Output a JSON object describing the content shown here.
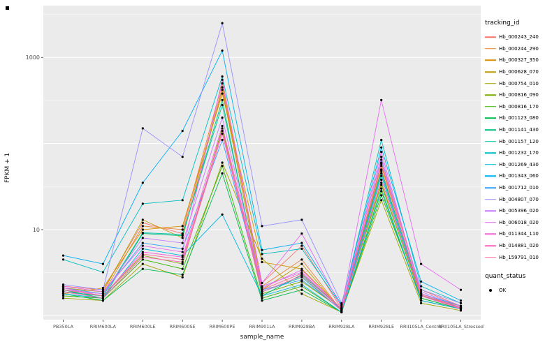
{
  "chart_data": {
    "type": "line",
    "title": "",
    "xlabel": "sample_name",
    "ylabel": "FPKM + 1",
    "y_scale": "log10",
    "y_ticks": [
      10,
      1000
    ],
    "ylim": [
      0.9,
      4000
    ],
    "panel_bg": "#EBEBEB",
    "grid_color": "#FFFFFF",
    "point_color": "#000000",
    "legend_title": "tracking_id",
    "legend2_title": "quant_status",
    "legend2_items": [
      {
        "label": "OK"
      }
    ],
    "categories": [
      "PB350LA",
      "RRIM600LA",
      "RRIM600LE",
      "RRIM600SE",
      "RRIM600PE",
      "RRIM901LA",
      "RRIM928BA",
      "RRIM928LA",
      "RRIM928LE",
      "RRII105LA_Control",
      "RRII105LA_Stressed"
    ],
    "series": [
      {
        "name": "Hb_000243_240",
        "color": "#F8766D",
        "values": [
          2.2,
          2.0,
          12,
          9,
          450,
          2.4,
          6.5,
          1.2,
          60,
          2.0,
          1.3
        ]
      },
      {
        "name": "Hb_000244_290",
        "color": "#EA8331",
        "values": [
          2.0,
          1.8,
          11,
          10,
          500,
          2.2,
          4.5,
          1.15,
          55,
          1.8,
          1.25
        ]
      },
      {
        "name": "Hb_000327_350",
        "color": "#D89000",
        "values": [
          1.8,
          2.1,
          10,
          11,
          380,
          4.2,
          3.5,
          1.2,
          50,
          1.7,
          1.3
        ]
      },
      {
        "name": "Hb_000628_070",
        "color": "#C09B00",
        "values": [
          2.1,
          1.9,
          13,
          8,
          420,
          2.0,
          4.0,
          1.15,
          35,
          1.6,
          1.2
        ]
      },
      {
        "name": "Hb_000754_010",
        "color": "#A3A500",
        "values": [
          1.6,
          1.5,
          4.0,
          2.8,
          60,
          4.6,
          1.8,
          1.1,
          22,
          1.4,
          1.15
        ]
      },
      {
        "name": "Hb_000816_090",
        "color": "#7CAE00",
        "values": [
          1.9,
          1.7,
          5.0,
          4.0,
          150,
          1.8,
          2.5,
          1.2,
          33,
          1.7,
          1.25
        ]
      },
      {
        "name": "Hb_000816_170",
        "color": "#39B600",
        "values": [
          1.7,
          1.6,
          4.5,
          3.5,
          55,
          1.6,
          2.2,
          1.1,
          28,
          1.5,
          1.2
        ]
      },
      {
        "name": "Hb_001123_080",
        "color": "#00BB4E",
        "values": [
          1.8,
          1.5,
          3.5,
          3.0,
          45,
          1.5,
          2.0,
          1.1,
          25,
          1.6,
          1.2
        ]
      },
      {
        "name": "Hb_001141_430",
        "color": "#00BF7D",
        "values": [
          2.0,
          1.6,
          9.0,
          8.5,
          320,
          1.7,
          3.0,
          1.2,
          48,
          1.8,
          1.3
        ]
      },
      {
        "name": "Hb_001157_120",
        "color": "#00C1A3",
        "values": [
          1.9,
          1.7,
          9.2,
          8.8,
          280,
          1.9,
          2.8,
          1.15,
          42,
          1.7,
          1.25
        ]
      },
      {
        "name": "Hb_001232_170",
        "color": "#00BFC4",
        "values": [
          4.5,
          3.2,
          20,
          22,
          600,
          5.2,
          6.0,
          1.3,
          110,
          2.2,
          1.4
        ]
      },
      {
        "name": "Hb_001269_430",
        "color": "#00BAE0",
        "values": [
          1.8,
          1.6,
          6.0,
          5.0,
          15,
          1.7,
          2.3,
          1.1,
          30,
          1.5,
          1.2
        ]
      },
      {
        "name": "Hb_001343_060",
        "color": "#00B0F6",
        "values": [
          5.0,
          4.0,
          35,
          140,
          1200,
          5.8,
          7.0,
          1.35,
          90,
          2.5,
          1.5
        ]
      },
      {
        "name": "Hb_001712_010",
        "color": "#35A2FF",
        "values": [
          2.1,
          1.8,
          7.0,
          6.0,
          110,
          2.0,
          2.6,
          1.2,
          45,
          1.8,
          1.3
        ]
      },
      {
        "name": "Hb_004807_070",
        "color": "#9590FF",
        "values": [
          2.3,
          2.0,
          150,
          70,
          2500,
          11,
          13,
          1.4,
          65,
          2.0,
          1.4
        ]
      },
      {
        "name": "Hb_005396_020",
        "color": "#C77CFF",
        "values": [
          2.0,
          1.8,
          8.0,
          7.0,
          200,
          2.2,
          3.2,
          1.2,
          70,
          1.9,
          1.3
        ]
      },
      {
        "name": "Hb_006018_020",
        "color": "#E76BF3",
        "values": [
          2.2,
          1.9,
          6.5,
          5.5,
          550,
          2.4,
          9.0,
          1.25,
          320,
          4.0,
          2.0
        ]
      },
      {
        "name": "Hb_011344_110",
        "color": "#FA62DB",
        "values": [
          2.1,
          1.7,
          5.5,
          4.8,
          160,
          2.1,
          3.4,
          1.2,
          80,
          1.8,
          1.25
        ]
      },
      {
        "name": "Hb_014881_020",
        "color": "#FF62BC",
        "values": [
          1.9,
          1.6,
          4.8,
          4.2,
          130,
          1.9,
          2.9,
          1.15,
          38,
          1.7,
          1.2
        ]
      },
      {
        "name": "Hb_159791_010",
        "color": "#FF6A98",
        "values": [
          2.0,
          1.7,
          5.2,
          4.5,
          140,
          2.0,
          3.1,
          1.2,
          58,
          1.75,
          1.22
        ]
      }
    ]
  }
}
